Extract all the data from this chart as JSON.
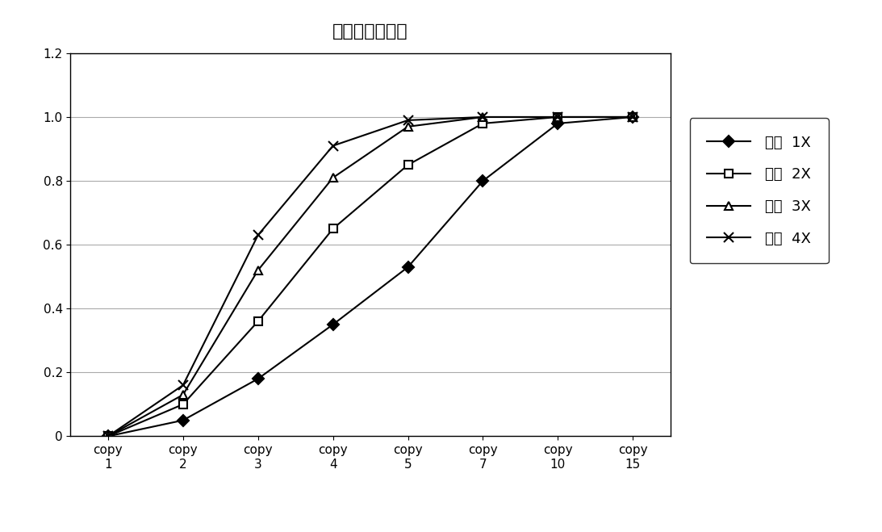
{
  "title": "不同测序量比较",
  "x_positions": [
    1,
    2,
    3,
    4,
    5,
    6,
    7,
    8
  ],
  "x_labels": [
    "copy\n1",
    "copy\n2",
    "copy\n3",
    "copy\n4",
    "copy\n5",
    "copy\n7",
    "copy\n10",
    "copy\n15"
  ],
  "series": [
    {
      "label": "测序  1X",
      "values": [
        0,
        0.05,
        0.18,
        0.35,
        0.53,
        0.8,
        0.98,
        1.0
      ],
      "marker": "D",
      "color": "#000000",
      "linestyle": "-",
      "markersize": 7,
      "markerfacecolor": "#000000"
    },
    {
      "label": "测序  2X",
      "values": [
        0,
        0.1,
        0.36,
        0.65,
        0.85,
        0.98,
        1.0,
        1.0
      ],
      "marker": "s",
      "color": "#000000",
      "linestyle": "-",
      "markersize": 7,
      "markerfacecolor": "#ffffff"
    },
    {
      "label": "测序  3X",
      "values": [
        0,
        0.13,
        0.52,
        0.81,
        0.97,
        1.0,
        1.0,
        1.0
      ],
      "marker": "^",
      "color": "#000000",
      "linestyle": "-",
      "markersize": 7,
      "markerfacecolor": "#ffffff"
    },
    {
      "label": "测序  4X",
      "values": [
        0,
        0.16,
        0.63,
        0.91,
        0.99,
        1.0,
        1.0,
        1.0
      ],
      "marker": "x",
      "color": "#000000",
      "linestyle": "-",
      "markersize": 9,
      "markerfacecolor": "#000000"
    }
  ],
  "ylim": [
    0,
    1.2
  ],
  "yticks": [
    0,
    0.2,
    0.4,
    0.6,
    0.8,
    1.0,
    1.2
  ],
  "background_color": "#ffffff",
  "grid_color": "#aaaaaa",
  "title_fontsize": 16,
  "tick_fontsize": 11,
  "legend_fontsize": 13
}
